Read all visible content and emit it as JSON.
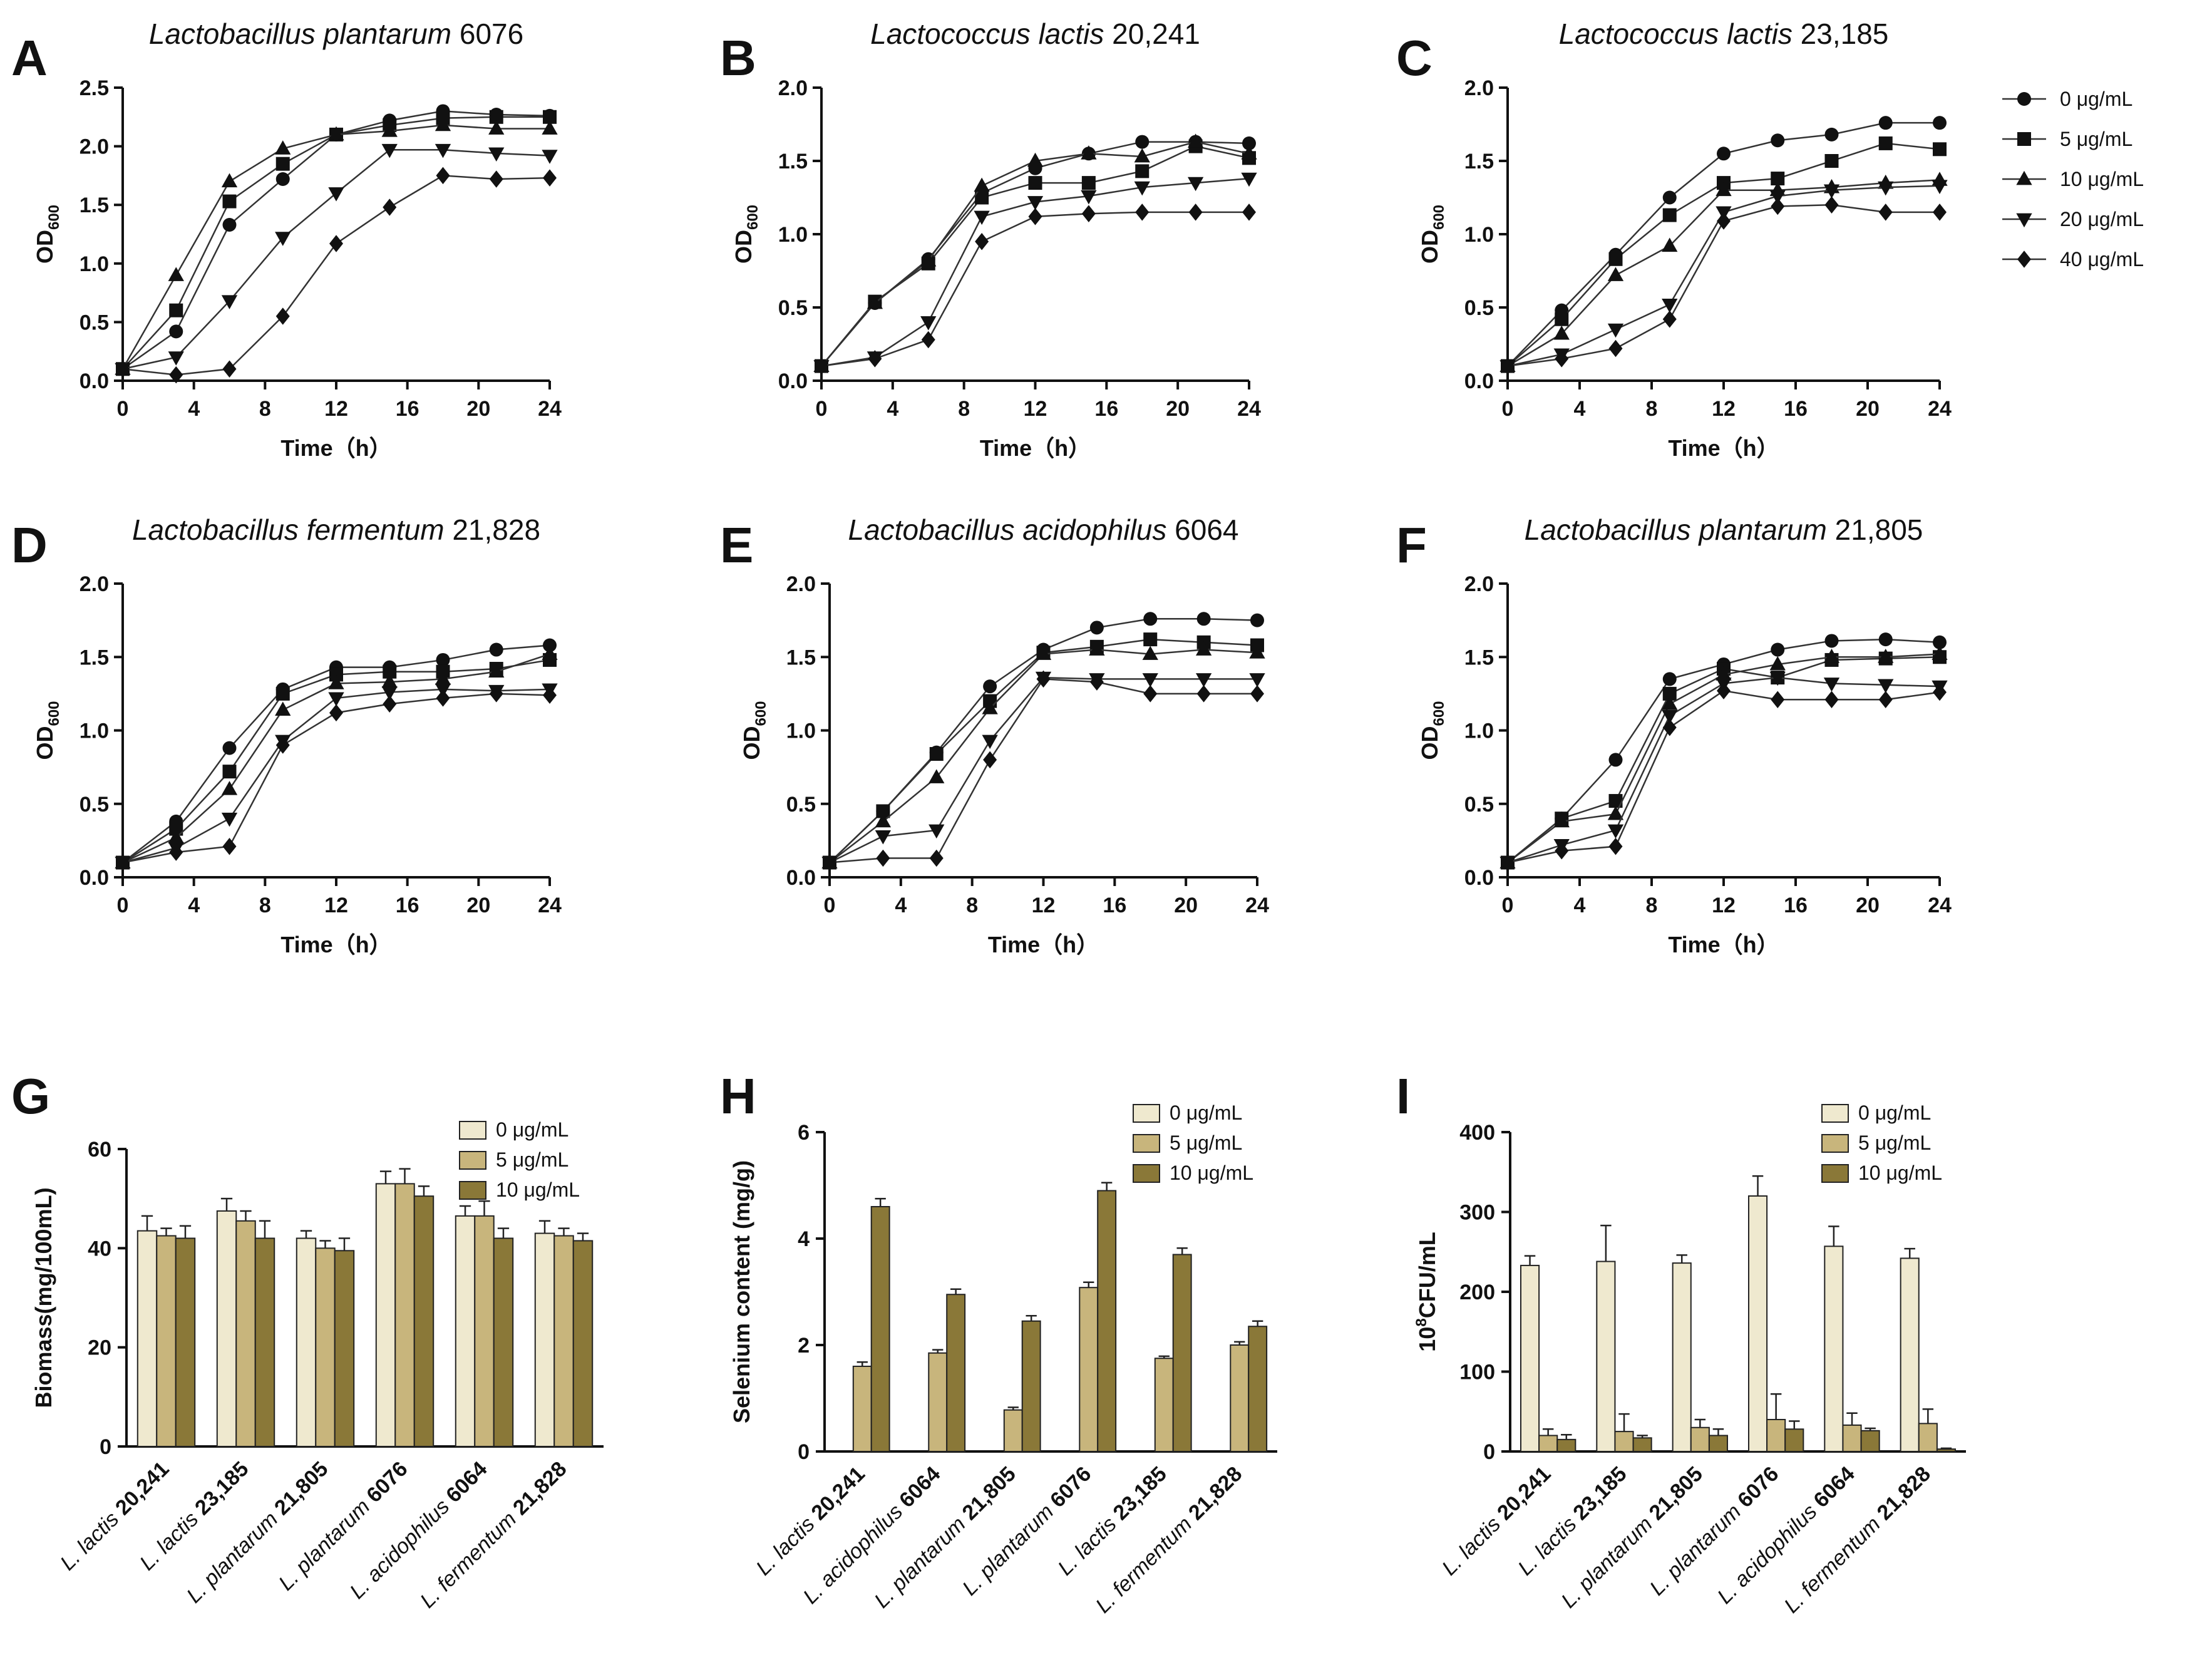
{
  "figure": {
    "line_legend": {
      "entries": [
        "0 μg/mL",
        "5 μg/mL",
        "10 μg/mL",
        "20 μg/mL",
        "40 μg/mL"
      ],
      "markers": [
        "circle",
        "square",
        "triangle-up",
        "triangle-down",
        "diamond"
      ]
    },
    "bar_colors": [
      "#efe9cf",
      "#c8b57c",
      "#8a7838"
    ]
  },
  "chart_data": [
    {
      "id": "A",
      "type": "line",
      "title_species": "Lactobacillus plantarum",
      "title_strain": "6076",
      "xlabel": "Time（h）",
      "ylabel_main": "OD",
      "ylabel_sub": "600",
      "xlim": [
        0,
        24
      ],
      "ylim": [
        0,
        2.5
      ],
      "xticks": [
        0,
        4,
        8,
        12,
        16,
        20,
        24
      ],
      "yticks": [
        0.0,
        0.5,
        1.0,
        1.5,
        2.0,
        2.5
      ],
      "ytick_labels": [
        "0.0",
        "0.5",
        "1.0",
        "1.5",
        "2.0",
        "2.5"
      ],
      "x": [
        0,
        3,
        6,
        9,
        12,
        15,
        18,
        21,
        24
      ],
      "series": [
        {
          "name": "0 μg/mL",
          "marker": "circle",
          "values": [
            0.1,
            0.42,
            1.33,
            1.72,
            2.1,
            2.22,
            2.3,
            2.27,
            2.26
          ]
        },
        {
          "name": "5 μg/mL",
          "marker": "square",
          "values": [
            0.1,
            0.6,
            1.53,
            1.85,
            2.1,
            2.18,
            2.24,
            2.25,
            2.25
          ]
        },
        {
          "name": "10 μg/mL",
          "marker": "triangle-up",
          "values": [
            0.1,
            0.9,
            1.7,
            1.98,
            2.1,
            2.13,
            2.18,
            2.15,
            2.15
          ]
        },
        {
          "name": "20 μg/mL",
          "marker": "triangle-down",
          "values": [
            0.1,
            0.2,
            0.68,
            1.22,
            1.6,
            1.97,
            1.97,
            1.94,
            1.92
          ]
        },
        {
          "name": "40 μg/mL",
          "marker": "diamond",
          "values": [
            0.1,
            0.05,
            0.1,
            0.55,
            1.17,
            1.48,
            1.75,
            1.72,
            1.73
          ]
        }
      ]
    },
    {
      "id": "B",
      "type": "line",
      "title_species": "Lactococcus lactis",
      "title_strain": "20,241",
      "xlabel": "Time（h）",
      "ylabel_main": "OD",
      "ylabel_sub": "600",
      "xlim": [
        0,
        24
      ],
      "ylim": [
        0,
        2.0
      ],
      "xticks": [
        0,
        4,
        8,
        12,
        16,
        20,
        24
      ],
      "yticks": [
        0.0,
        0.5,
        1.0,
        1.5,
        2.0
      ],
      "ytick_labels": [
        "0.0",
        "0.5",
        "1.0",
        "1.5",
        "2.0"
      ],
      "x": [
        0,
        3,
        6,
        9,
        12,
        15,
        18,
        21,
        24
      ],
      "series": [
        {
          "name": "0 μg/mL",
          "marker": "circle",
          "values": [
            0.1,
            0.53,
            0.83,
            1.28,
            1.45,
            1.55,
            1.63,
            1.63,
            1.62
          ]
        },
        {
          "name": "5 μg/mL",
          "marker": "square",
          "values": [
            0.1,
            0.54,
            0.8,
            1.25,
            1.35,
            1.35,
            1.43,
            1.6,
            1.52
          ]
        },
        {
          "name": "10 μg/mL",
          "marker": "triangle-up",
          "values": [
            0.1,
            0.53,
            0.82,
            1.33,
            1.5,
            1.55,
            1.53,
            1.63,
            1.55
          ]
        },
        {
          "name": "20 μg/mL",
          "marker": "triangle-down",
          "values": [
            0.1,
            0.16,
            0.4,
            1.12,
            1.22,
            1.26,
            1.32,
            1.35,
            1.38
          ]
        },
        {
          "name": "40 μg/mL",
          "marker": "diamond",
          "values": [
            0.1,
            0.15,
            0.28,
            0.95,
            1.12,
            1.14,
            1.15,
            1.15,
            1.15
          ]
        }
      ]
    },
    {
      "id": "C",
      "type": "line",
      "title_species": "Lactococcus lactis",
      "title_strain": "23,185",
      "xlabel": "Time（h）",
      "ylabel_main": "OD",
      "ylabel_sub": "600",
      "xlim": [
        0,
        24
      ],
      "ylim": [
        0,
        2.0
      ],
      "xticks": [
        0,
        4,
        8,
        12,
        16,
        20,
        24
      ],
      "yticks": [
        0.0,
        0.5,
        1.0,
        1.5,
        2.0
      ],
      "ytick_labels": [
        "0.0",
        "0.5",
        "1.0",
        "1.5",
        "2.0"
      ],
      "x": [
        0,
        3,
        6,
        9,
        12,
        15,
        18,
        21,
        24
      ],
      "series": [
        {
          "name": "0 μg/mL",
          "marker": "circle",
          "values": [
            0.1,
            0.48,
            0.86,
            1.25,
            1.55,
            1.64,
            1.68,
            1.76,
            1.76
          ]
        },
        {
          "name": "5 μg/mL",
          "marker": "square",
          "values": [
            0.1,
            0.42,
            0.83,
            1.13,
            1.35,
            1.38,
            1.5,
            1.62,
            1.58
          ]
        },
        {
          "name": "10 μg/mL",
          "marker": "triangle-up",
          "values": [
            0.1,
            0.32,
            0.72,
            0.92,
            1.3,
            1.3,
            1.32,
            1.35,
            1.37
          ]
        },
        {
          "name": "20 μg/mL",
          "marker": "triangle-down",
          "values": [
            0.1,
            0.18,
            0.35,
            0.52,
            1.15,
            1.26,
            1.3,
            1.32,
            1.33
          ]
        },
        {
          "name": "40 μg/mL",
          "marker": "diamond",
          "values": [
            0.1,
            0.15,
            0.22,
            0.42,
            1.09,
            1.19,
            1.2,
            1.15,
            1.15
          ]
        }
      ]
    },
    {
      "id": "D",
      "type": "line",
      "title_species": "Lactobacillus fermentum",
      "title_strain": "21,828",
      "xlabel": "Time（h）",
      "ylabel_main": "OD",
      "ylabel_sub": "600",
      "xlim": [
        0,
        24
      ],
      "ylim": [
        0,
        2.0
      ],
      "xticks": [
        0,
        4,
        8,
        12,
        16,
        20,
        24
      ],
      "yticks": [
        0.0,
        0.5,
        1.0,
        1.5,
        2.0
      ],
      "ytick_labels": [
        "0.0",
        "0.5",
        "1.0",
        "1.5",
        "2.0"
      ],
      "x": [
        0,
        3,
        6,
        9,
        12,
        15,
        18,
        21,
        24
      ],
      "series": [
        {
          "name": "0 μg/mL",
          "marker": "circle",
          "values": [
            0.1,
            0.38,
            0.88,
            1.28,
            1.43,
            1.43,
            1.48,
            1.55,
            1.58
          ]
        },
        {
          "name": "5 μg/mL",
          "marker": "square",
          "values": [
            0.1,
            0.33,
            0.72,
            1.25,
            1.38,
            1.4,
            1.4,
            1.42,
            1.48
          ]
        },
        {
          "name": "10 μg/mL",
          "marker": "triangle-up",
          "values": [
            0.1,
            0.27,
            0.6,
            1.14,
            1.32,
            1.33,
            1.35,
            1.4,
            1.52
          ]
        },
        {
          "name": "20 μg/mL",
          "marker": "triangle-down",
          "values": [
            0.1,
            0.2,
            0.4,
            0.93,
            1.22,
            1.26,
            1.28,
            1.27,
            1.28
          ]
        },
        {
          "name": "40 μg/mL",
          "marker": "diamond",
          "values": [
            0.1,
            0.17,
            0.21,
            0.9,
            1.12,
            1.18,
            1.22,
            1.25,
            1.24
          ]
        }
      ]
    },
    {
      "id": "E",
      "type": "line",
      "title_species": "Lactobacillus acidophilus",
      "title_strain": "6064",
      "xlabel": "Time（h）",
      "ylabel_main": "OD",
      "ylabel_sub": "600",
      "xlim": [
        0,
        24
      ],
      "ylim": [
        0,
        2.0
      ],
      "xticks": [
        0,
        4,
        8,
        12,
        16,
        20,
        24
      ],
      "yticks": [
        0.0,
        0.5,
        1.0,
        1.5,
        2.0
      ],
      "ytick_labels": [
        "0.0",
        "0.5",
        "1.0",
        "1.5",
        "2.0"
      ],
      "x": [
        0,
        3,
        6,
        9,
        12,
        15,
        18,
        21,
        24
      ],
      "series": [
        {
          "name": "0 μg/mL",
          "marker": "circle",
          "values": [
            0.1,
            0.45,
            0.85,
            1.3,
            1.55,
            1.7,
            1.76,
            1.76,
            1.75
          ]
        },
        {
          "name": "5 μg/mL",
          "marker": "square",
          "values": [
            0.1,
            0.45,
            0.84,
            1.2,
            1.53,
            1.57,
            1.62,
            1.6,
            1.58
          ]
        },
        {
          "name": "10 μg/mL",
          "marker": "triangle-up",
          "values": [
            0.1,
            0.38,
            0.68,
            1.15,
            1.52,
            1.55,
            1.52,
            1.55,
            1.53
          ]
        },
        {
          "name": "20 μg/mL",
          "marker": "triangle-down",
          "values": [
            0.1,
            0.28,
            0.32,
            0.93,
            1.36,
            1.35,
            1.35,
            1.35,
            1.35
          ]
        },
        {
          "name": "40 μg/mL",
          "marker": "diamond",
          "values": [
            0.1,
            0.13,
            0.13,
            0.8,
            1.35,
            1.33,
            1.25,
            1.25,
            1.25
          ]
        }
      ]
    },
    {
      "id": "F",
      "type": "line",
      "title_species": "Lactobacillus plantarum",
      "title_strain": "21,805",
      "xlabel": "Time（h）",
      "ylabel_main": "OD",
      "ylabel_sub": "600",
      "xlim": [
        0,
        24
      ],
      "ylim": [
        0,
        2.0
      ],
      "xticks": [
        0,
        4,
        8,
        12,
        16,
        20,
        24
      ],
      "yticks": [
        0.0,
        0.5,
        1.0,
        1.5,
        2.0
      ],
      "ytick_labels": [
        "0.0",
        "0.5",
        "1.0",
        "1.5",
        "2.0"
      ],
      "x": [
        0,
        3,
        6,
        9,
        12,
        15,
        18,
        21,
        24
      ],
      "series": [
        {
          "name": "0 μg/mL",
          "marker": "circle",
          "values": [
            0.1,
            0.4,
            0.8,
            1.35,
            1.45,
            1.55,
            1.61,
            1.62,
            1.6
          ]
        },
        {
          "name": "5 μg/mL",
          "marker": "square",
          "values": [
            0.1,
            0.4,
            0.52,
            1.25,
            1.42,
            1.36,
            1.48,
            1.49,
            1.5
          ]
        },
        {
          "name": "10 μg/mL",
          "marker": "triangle-up",
          "values": [
            0.1,
            0.38,
            0.43,
            1.18,
            1.38,
            1.45,
            1.5,
            1.5,
            1.52
          ]
        },
        {
          "name": "20 μg/mL",
          "marker": "triangle-down",
          "values": [
            0.1,
            0.22,
            0.32,
            1.1,
            1.32,
            1.36,
            1.32,
            1.31,
            1.3
          ]
        },
        {
          "name": "40 μg/mL",
          "marker": "diamond",
          "values": [
            0.1,
            0.18,
            0.21,
            1.02,
            1.27,
            1.21,
            1.21,
            1.21,
            1.26
          ]
        }
      ]
    },
    {
      "id": "G",
      "type": "bar",
      "ylabel": "Biomass(mg/100mL)",
      "ylim": [
        0,
        60
      ],
      "yticks": [
        0,
        20,
        40,
        60
      ],
      "ytick_labels": [
        "0",
        "20",
        "40",
        "60"
      ],
      "categories": [
        {
          "species": "L. lactis",
          "strain": "20,241"
        },
        {
          "species": "L. lactis",
          "strain": "23,185"
        },
        {
          "species": "L. plantarum",
          "strain": "21,805"
        },
        {
          "species": "L. plantarum",
          "strain": "6076"
        },
        {
          "species": "L. acidophilus",
          "strain": "6064"
        },
        {
          "species": "L. fermentum",
          "strain": "21,828"
        }
      ],
      "series": [
        {
          "name": "0 μg/mL",
          "values": [
            43.5,
            47.5,
            42.0,
            53.0,
            46.5,
            43.0
          ],
          "errors": [
            3.0,
            2.5,
            1.5,
            2.5,
            2.0,
            2.5
          ]
        },
        {
          "name": "5 μg/mL",
          "values": [
            42.5,
            45.5,
            40.0,
            53.0,
            46.5,
            42.5
          ],
          "errors": [
            1.5,
            2.0,
            1.5,
            3.0,
            3.0,
            1.5
          ]
        },
        {
          "name": "10 μg/mL",
          "values": [
            42.0,
            42.0,
            39.5,
            50.5,
            42.0,
            41.5
          ],
          "errors": [
            2.5,
            3.5,
            2.5,
            2.0,
            2.0,
            1.5
          ]
        }
      ],
      "legend": [
        "0 μg/mL",
        "5 μg/mL",
        "10 μg/mL"
      ]
    },
    {
      "id": "H",
      "type": "bar",
      "ylabel": "Selenium content (mg/g)",
      "ylim": [
        0,
        6
      ],
      "yticks": [
        0,
        2,
        4,
        6
      ],
      "ytick_labels": [
        "0",
        "2",
        "4",
        "6"
      ],
      "categories": [
        {
          "species": "L. lactis",
          "strain": "20,241"
        },
        {
          "species": "L. acidophilus",
          "strain": "6064"
        },
        {
          "species": "L. plantarum",
          "strain": "21,805"
        },
        {
          "species": "L. plantarum",
          "strain": "6076"
        },
        {
          "species": "L. lactis",
          "strain": "23,185"
        },
        {
          "species": "L. fermentum",
          "strain": "21,828"
        }
      ],
      "series": [
        {
          "name": "0 μg/mL",
          "values": [
            0,
            0,
            0,
            0,
            0,
            0
          ],
          "errors": [
            0,
            0,
            0,
            0,
            0,
            0
          ]
        },
        {
          "name": "5 μg/mL",
          "values": [
            1.6,
            1.85,
            0.78,
            3.08,
            1.75,
            2.0
          ],
          "errors": [
            0.08,
            0.06,
            0.05,
            0.1,
            0.04,
            0.06
          ]
        },
        {
          "name": "10 μg/mL",
          "values": [
            4.6,
            2.95,
            2.45,
            4.9,
            3.7,
            2.35
          ],
          "errors": [
            0.15,
            0.1,
            0.1,
            0.15,
            0.12,
            0.1
          ]
        }
      ],
      "legend": [
        "0 μg/mL",
        "5 μg/mL",
        "10 μg/mL"
      ]
    },
    {
      "id": "I",
      "type": "bar",
      "ylabel_pre": "10",
      "ylabel_sup": "8",
      "ylabel_post": "CFU/mL",
      "ylim": [
        0,
        400
      ],
      "yticks": [
        0,
        100,
        200,
        300,
        400
      ],
      "ytick_labels": [
        "0",
        "100",
        "200",
        "300",
        "400"
      ],
      "categories": [
        {
          "species": "L. lactis",
          "strain": "20,241"
        },
        {
          "species": "L. lactis",
          "strain": "23,185"
        },
        {
          "species": "L. plantarum",
          "strain": "21,805"
        },
        {
          "species": "L. plantarum",
          "strain": "6076"
        },
        {
          "species": "L. acidophilus",
          "strain": "6064"
        },
        {
          "species": "L. fermentum",
          "strain": "21,828"
        }
      ],
      "series": [
        {
          "name": "0 μg/mL",
          "values": [
            233,
            238,
            236,
            320,
            257,
            242
          ],
          "errors": [
            12,
            45,
            10,
            25,
            25,
            12
          ]
        },
        {
          "name": "5 μg/mL",
          "values": [
            20,
            25,
            30,
            40,
            33,
            35
          ],
          "errors": [
            8,
            22,
            10,
            32,
            15,
            18
          ]
        },
        {
          "name": "10 μg/mL",
          "values": [
            15,
            17,
            20,
            28,
            26,
            3
          ],
          "errors": [
            6,
            3,
            8,
            10,
            3,
            1
          ]
        }
      ],
      "legend": [
        "0 μg/mL",
        "5 μg/mL",
        "10 μg/mL"
      ]
    }
  ]
}
